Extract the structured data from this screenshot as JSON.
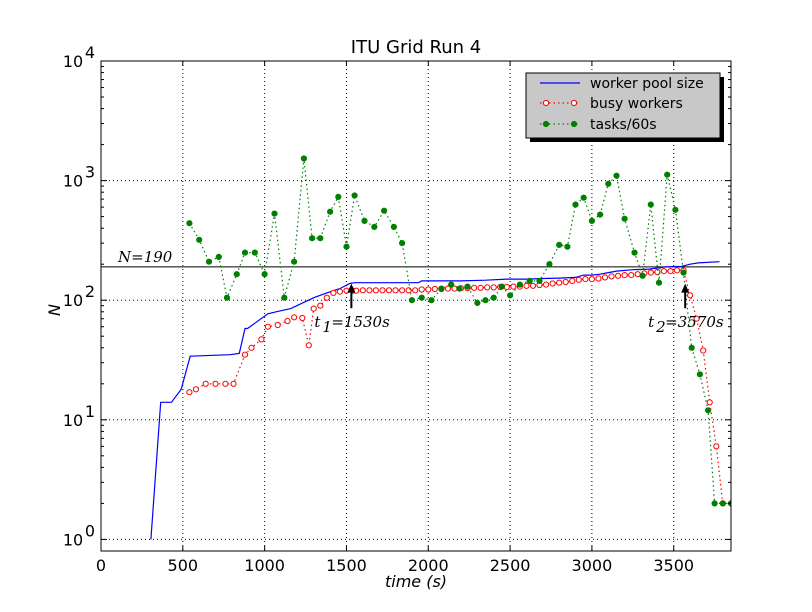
{
  "chart_data": {
    "type": "line",
    "title": "ITU Grid Run 4",
    "xlabel": "time (s)",
    "ylabel": "N",
    "xlim": [
      0,
      3850
    ],
    "ylim": [
      0.8,
      10000
    ],
    "yscale": "log",
    "grid": true,
    "legend": "top-right",
    "x_ticks": [
      "0",
      "500",
      "1000",
      "1500",
      "2000",
      "2500",
      "3000",
      "3500"
    ],
    "y_ticks": [
      {
        "value": 1,
        "base": "10",
        "exp": "0"
      },
      {
        "value": 10,
        "base": "10",
        "exp": "1"
      },
      {
        "value": 100,
        "base": "10",
        "exp": "2"
      },
      {
        "value": 1000,
        "base": "10",
        "exp": "3"
      },
      {
        "value": 10000,
        "base": "10",
        "exp": "4"
      }
    ],
    "series": [
      {
        "name": "worker pool size",
        "color": "#0000ff",
        "style": "solid",
        "x": [
          305,
          365,
          430,
          490,
          545,
          790,
          845,
          880,
          895,
          1020,
          1070,
          1160,
          1300,
          1380,
          1460,
          1520,
          1550,
          1940,
          1960,
          2050,
          2200,
          2350,
          2480,
          2600,
          2700,
          2800,
          2900,
          2950,
          3000,
          3050,
          3100,
          3150,
          3250,
          3350,
          3450,
          3550,
          3600,
          3650,
          3780
        ],
        "y": [
          1,
          14,
          14,
          18,
          34,
          35,
          36,
          58,
          58,
          77,
          80,
          85,
          105,
          115,
          125,
          138,
          140,
          140,
          145,
          145,
          145,
          147,
          150,
          150,
          152,
          153,
          155,
          162,
          162,
          165,
          170,
          175,
          180,
          182,
          190,
          192,
          200,
          205,
          210
        ]
      },
      {
        "name": "busy workers",
        "color": "#ff0000",
        "style": "dotted",
        "marker": "hollow-circle",
        "x": [
          540,
          580,
          640,
          700,
          760,
          810,
          880,
          920,
          980,
          1020,
          1080,
          1140,
          1180,
          1230,
          1270,
          1300,
          1340,
          1380,
          1420,
          1460,
          1500,
          1540,
          1560,
          1600,
          1640,
          1680,
          1720,
          1760,
          1800,
          1840,
          1880,
          1920,
          1960,
          2000,
          2040,
          2080,
          2120,
          2160,
          2200,
          2240,
          2280,
          2320,
          2360,
          2400,
          2440,
          2480,
          2520,
          2560,
          2600,
          2640,
          2680,
          2720,
          2760,
          2800,
          2840,
          2880,
          2920,
          2960,
          3000,
          3040,
          3080,
          3120,
          3160,
          3200,
          3240,
          3280,
          3320,
          3360,
          3400,
          3440,
          3480,
          3520,
          3560,
          3600,
          3640,
          3680,
          3720,
          3760,
          3800,
          3850
        ],
        "y": [
          17,
          18,
          20,
          20,
          20,
          20,
          35,
          40,
          47,
          60,
          62,
          67,
          72,
          71,
          42,
          85,
          90,
          105,
          115,
          118,
          120,
          120,
          120,
          121,
          121,
          121,
          121,
          121,
          121,
          121,
          121,
          121,
          123,
          123,
          124,
          124,
          125,
          125,
          126,
          126,
          127,
          127,
          128,
          128,
          129,
          129,
          130,
          130,
          132,
          132,
          134,
          135,
          138,
          140,
          142,
          145,
          148,
          150,
          150,
          152,
          155,
          158,
          160,
          162,
          162,
          165,
          168,
          170,
          172,
          175,
          175,
          178,
          178,
          110,
          70,
          38,
          14,
          6,
          2,
          2
        ]
      },
      {
        "name": "tasks/60s",
        "color": "#008000",
        "style": "dotted",
        "marker": "filled-circle",
        "x": [
          540,
          600,
          660,
          720,
          770,
          830,
          880,
          940,
          1000,
          1060,
          1120,
          1180,
          1240,
          1290,
          1340,
          1400,
          1450,
          1500,
          1550,
          1610,
          1670,
          1730,
          1790,
          1840,
          1900,
          1960,
          2020,
          2080,
          2140,
          2190,
          2240,
          2300,
          2350,
          2400,
          2450,
          2500,
          2560,
          2620,
          2680,
          2740,
          2800,
          2850,
          2900,
          2950,
          3000,
          3050,
          3100,
          3150,
          3200,
          3260,
          3310,
          3360,
          3410,
          3460,
          3510,
          3560,
          3610,
          3660,
          3710,
          3750,
          3800,
          3850
        ],
        "y": [
          440,
          320,
          210,
          230,
          105,
          165,
          250,
          250,
          165,
          530,
          105,
          210,
          1530,
          330,
          330,
          550,
          730,
          280,
          750,
          460,
          410,
          560,
          410,
          300,
          100,
          105,
          100,
          125,
          135,
          125,
          130,
          95,
          100,
          105,
          130,
          110,
          135,
          145,
          145,
          200,
          290,
          280,
          630,
          720,
          460,
          520,
          940,
          1100,
          480,
          250,
          160,
          630,
          140,
          1120,
          570,
          170,
          40,
          24,
          12,
          2,
          2,
          2
        ]
      }
    ],
    "annotations": {
      "hline_label": "N=190",
      "hline_value": 190,
      "t1": {
        "label": "t",
        "sub": "1",
        "value_text": "=1530s",
        "x": 1530,
        "y": 100
      },
      "t2": {
        "label": "t",
        "sub": "2",
        "value_text": "=3570s",
        "x": 3570,
        "y": 100
      }
    }
  }
}
